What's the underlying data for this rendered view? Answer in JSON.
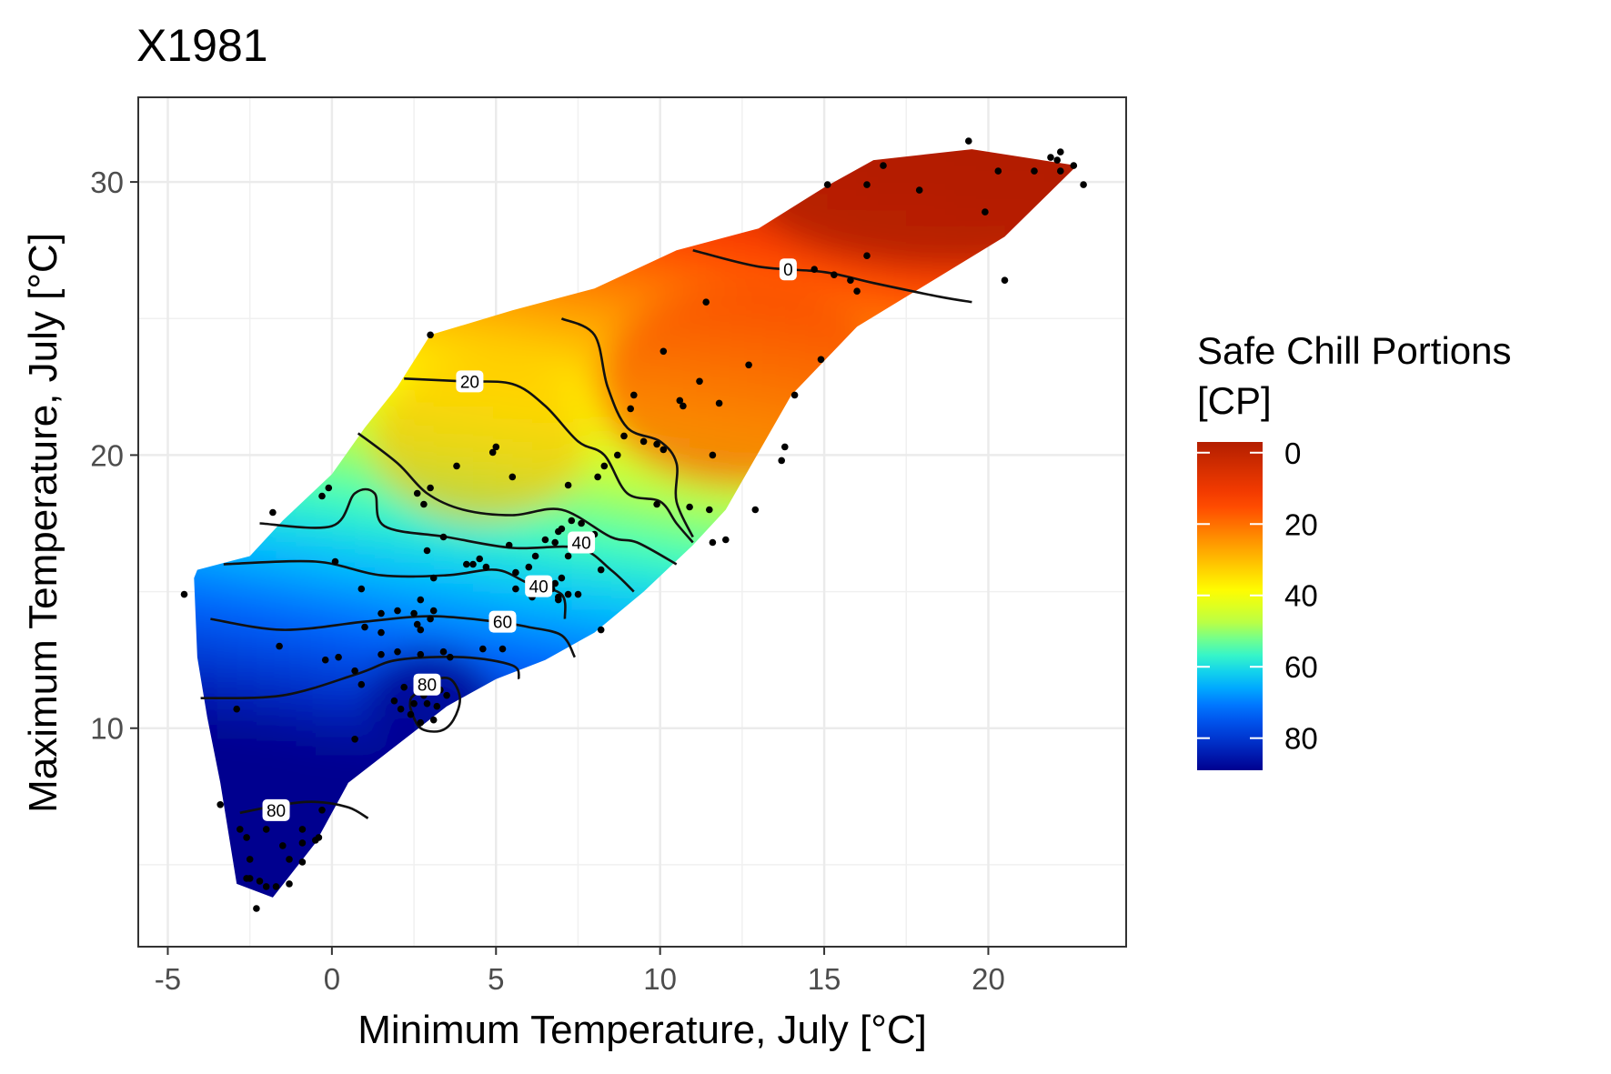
{
  "chart_data": {
    "type": "heatmap",
    "title": "X1981",
    "xlabel": "Minimum Temperature, July [°C]",
    "ylabel": "Maximum Temperature, July [°C]",
    "xlim": [
      -5.9,
      24.2
    ],
    "ylim": [
      2.0,
      33.1
    ],
    "x_ticks": [
      -5,
      0,
      5,
      10,
      15,
      20
    ],
    "y_ticks": [
      10,
      20,
      30
    ],
    "grid": true,
    "legend": {
      "title_lines": [
        "Safe Chill Portions",
        "[CP]"
      ],
      "position": "right",
      "range": [
        -3,
        89
      ],
      "breaks": [
        0,
        20,
        40,
        60,
        80
      ],
      "colors": [
        "#00008f",
        "#0033cc",
        "#0066ff",
        "#00bfff",
        "#40ffbf",
        "#bfff40",
        "#ffff00",
        "#ffbf00",
        "#ff8000",
        "#ff4000",
        "#d93000",
        "#b31e00"
      ]
    },
    "region_boundary": [
      [
        -4.1,
        15.8
      ],
      [
        -2.5,
        16.3
      ],
      [
        -1.5,
        17.6
      ],
      [
        0.0,
        19.3
      ],
      [
        1.0,
        21.0
      ],
      [
        2.0,
        22.5
      ],
      [
        3.0,
        24.4
      ],
      [
        5.5,
        25.3
      ],
      [
        8.0,
        26.1
      ],
      [
        10.5,
        27.5
      ],
      [
        13.0,
        28.3
      ],
      [
        15.0,
        29.8
      ],
      [
        16.5,
        30.8
      ],
      [
        18.0,
        31.0
      ],
      [
        19.5,
        31.2
      ],
      [
        22.7,
        30.6
      ],
      [
        20.5,
        28.0
      ],
      [
        16.0,
        24.7
      ],
      [
        14.0,
        22.2
      ],
      [
        12.0,
        18.0
      ],
      [
        11.0,
        16.7
      ],
      [
        9.5,
        15.0
      ],
      [
        8.0,
        13.5
      ],
      [
        6.5,
        12.5
      ],
      [
        5.0,
        11.8
      ],
      [
        3.5,
        10.8
      ],
      [
        0.5,
        8.0
      ],
      [
        -0.5,
        5.8
      ],
      [
        -1.8,
        3.8
      ],
      [
        -2.9,
        4.3
      ],
      [
        -3.4,
        8.0
      ],
      [
        -3.8,
        10.4
      ],
      [
        -4.1,
        12.6
      ],
      [
        -4.2,
        15.5
      ]
    ],
    "contours": [
      {
        "level": 0,
        "path": [
          [
            11.0,
            27.5
          ],
          [
            13.0,
            26.9
          ],
          [
            15.0,
            26.7
          ],
          [
            16.5,
            26.3
          ],
          [
            18.5,
            25.8
          ],
          [
            19.5,
            25.6
          ]
        ],
        "labels": [
          [
            13.9,
            26.8
          ]
        ]
      },
      {
        "level": 20,
        "path": [
          [
            2.2,
            22.8
          ],
          [
            4.0,
            22.7
          ],
          [
            5.5,
            22.6
          ],
          [
            6.5,
            21.8
          ],
          [
            7.5,
            20.5
          ],
          [
            8.3,
            20.0
          ],
          [
            9.0,
            18.6
          ],
          [
            10.0,
            18.3
          ],
          [
            10.5,
            17.5
          ],
          [
            11.0,
            16.8
          ]
        ],
        "labels": [
          [
            4.2,
            22.7
          ]
        ]
      },
      {
        "level": 20,
        "path": [
          [
            7.0,
            25.0
          ],
          [
            8.0,
            24.4
          ],
          [
            8.4,
            22.5
          ],
          [
            9.0,
            21.0
          ],
          [
            10.0,
            20.5
          ],
          [
            10.5,
            19.7
          ],
          [
            10.5,
            18.3
          ],
          [
            11.0,
            17.0
          ]
        ],
        "labels": []
      },
      {
        "level": 40,
        "path": [
          [
            0.8,
            20.8
          ],
          [
            2.0,
            19.7
          ],
          [
            2.9,
            18.6
          ],
          [
            4.0,
            18.0
          ],
          [
            5.5,
            17.8
          ],
          [
            7.0,
            18.0
          ],
          [
            8.5,
            17.0
          ],
          [
            9.3,
            16.8
          ],
          [
            10.5,
            16.0
          ]
        ],
        "labels": [
          [
            7.6,
            16.8
          ]
        ]
      },
      {
        "level": 40,
        "path": [
          [
            -2.2,
            17.5
          ],
          [
            0.0,
            17.4
          ],
          [
            0.7,
            18.6
          ],
          [
            1.3,
            18.6
          ],
          [
            1.6,
            17.4
          ],
          [
            3.5,
            17.0
          ],
          [
            5.5,
            16.6
          ],
          [
            7.5,
            16.6
          ],
          [
            8.5,
            15.8
          ],
          [
            9.2,
            15.0
          ]
        ],
        "labels": [
          [
            6.3,
            15.2
          ]
        ]
      },
      {
        "level": 60,
        "path": [
          [
            -3.3,
            16.0
          ],
          [
            -0.5,
            16.1
          ],
          [
            1.5,
            15.6
          ],
          [
            3.5,
            15.6
          ],
          [
            5.0,
            15.8
          ],
          [
            6.0,
            15.3
          ],
          [
            7.0,
            14.9
          ],
          [
            7.1,
            14.0
          ]
        ],
        "labels": []
      },
      {
        "level": 60,
        "path": [
          [
            -3.7,
            14.0
          ],
          [
            -1.5,
            13.6
          ],
          [
            1.0,
            13.9
          ],
          [
            3.0,
            14.1
          ],
          [
            5.0,
            13.9
          ],
          [
            6.0,
            13.7
          ],
          [
            7.0,
            13.4
          ],
          [
            7.4,
            12.6
          ]
        ],
        "labels": [
          [
            5.2,
            13.9
          ]
        ]
      },
      {
        "level": 80,
        "path": [
          [
            -4.0,
            11.1
          ],
          [
            -1.5,
            11.2
          ],
          [
            0.8,
            12.0
          ],
          [
            2.0,
            12.5
          ],
          [
            4.0,
            12.6
          ],
          [
            5.5,
            12.3
          ],
          [
            5.7,
            11.8
          ]
        ],
        "labels": []
      },
      {
        "level": 80,
        "path": [
          [
            2.4,
            11.1
          ],
          [
            3.0,
            11.7
          ],
          [
            3.6,
            11.8
          ],
          [
            3.9,
            11.1
          ],
          [
            3.7,
            10.3
          ],
          [
            3.3,
            9.9
          ],
          [
            2.7,
            10.0
          ],
          [
            2.4,
            10.7
          ],
          [
            2.4,
            11.1
          ]
        ],
        "labels": [
          [
            2.9,
            11.6
          ]
        ]
      },
      {
        "level": 80,
        "path": [
          [
            -2.8,
            6.9
          ],
          [
            -1.5,
            7.2
          ],
          [
            -0.5,
            7.3
          ],
          [
            0.5,
            7.1
          ],
          [
            1.1,
            6.7
          ]
        ],
        "labels": [
          [
            -1.7,
            7.0
          ]
        ]
      }
    ],
    "points": [
      [
        19.4,
        31.5
      ],
      [
        22.2,
        31.1
      ],
      [
        21.9,
        30.9
      ],
      [
        22.1,
        30.8
      ],
      [
        22.6,
        30.6
      ],
      [
        22.2,
        30.4
      ],
      [
        16.8,
        30.6
      ],
      [
        20.3,
        30.4
      ],
      [
        21.4,
        30.4
      ],
      [
        15.1,
        29.9
      ],
      [
        16.3,
        29.9
      ],
      [
        17.9,
        29.7
      ],
      [
        22.9,
        29.9
      ],
      [
        19.9,
        28.9
      ],
      [
        16.3,
        27.3
      ],
      [
        13.9,
        27.0
      ],
      [
        14.7,
        26.8
      ],
      [
        15.3,
        26.6
      ],
      [
        15.8,
        26.4
      ],
      [
        20.5,
        26.4
      ],
      [
        16.0,
        26.0
      ],
      [
        11.4,
        25.6
      ],
      [
        10.1,
        23.8
      ],
      [
        14.9,
        23.5
      ],
      [
        12.7,
        23.3
      ],
      [
        11.2,
        22.7
      ],
      [
        9.2,
        22.2
      ],
      [
        10.6,
        22.0
      ],
      [
        14.1,
        22.2
      ],
      [
        11.8,
        21.9
      ],
      [
        9.1,
        21.7
      ],
      [
        10.7,
        21.8
      ],
      [
        8.9,
        20.7
      ],
      [
        9.5,
        20.5
      ],
      [
        9.9,
        20.4
      ],
      [
        10.1,
        20.2
      ],
      [
        13.8,
        20.3
      ],
      [
        11.6,
        20.0
      ],
      [
        8.7,
        20.0
      ],
      [
        13.7,
        19.8
      ],
      [
        8.3,
        19.6
      ],
      [
        5.0,
        20.3
      ],
      [
        4.9,
        20.1
      ],
      [
        3.8,
        19.6
      ],
      [
        5.5,
        19.2
      ],
      [
        8.1,
        19.2
      ],
      [
        7.2,
        18.9
      ],
      [
        3.0,
        18.8
      ],
      [
        2.6,
        18.6
      ],
      [
        2.8,
        18.2
      ],
      [
        9.9,
        18.2
      ],
      [
        10.9,
        18.1
      ],
      [
        11.5,
        18.0
      ],
      [
        12.9,
        18.0
      ],
      [
        -0.1,
        18.8
      ],
      [
        -0.3,
        18.5
      ],
      [
        -1.8,
        17.9
      ],
      [
        7.3,
        17.6
      ],
      [
        7.6,
        17.5
      ],
      [
        7.0,
        17.3
      ],
      [
        6.8,
        16.8
      ],
      [
        8.0,
        17.1
      ],
      [
        6.9,
        17.2
      ],
      [
        3.4,
        17.0
      ],
      [
        5.4,
        16.7
      ],
      [
        6.5,
        16.9
      ],
      [
        11.6,
        16.8
      ],
      [
        12.0,
        16.9
      ],
      [
        2.9,
        16.5
      ],
      [
        4.5,
        16.2
      ],
      [
        7.2,
        16.3
      ],
      [
        6.2,
        16.3
      ],
      [
        0.1,
        16.1
      ],
      [
        4.1,
        16.0
      ],
      [
        4.3,
        16.0
      ],
      [
        6.0,
        15.9
      ],
      [
        4.7,
        15.9
      ],
      [
        5.6,
        15.7
      ],
      [
        8.2,
        15.8
      ],
      [
        3.1,
        15.5
      ],
      [
        7.0,
        15.5
      ],
      [
        6.8,
        15.3
      ],
      [
        6.7,
        15.1
      ],
      [
        7.2,
        14.9
      ],
      [
        6.9,
        14.7
      ],
      [
        5.6,
        15.1
      ],
      [
        0.9,
        15.1
      ],
      [
        6.1,
        14.8
      ],
      [
        7.5,
        14.9
      ],
      [
        6.9,
        14.8
      ],
      [
        2.7,
        14.7
      ],
      [
        -4.5,
        14.9
      ],
      [
        2.0,
        14.3
      ],
      [
        1.5,
        14.2
      ],
      [
        2.5,
        14.2
      ],
      [
        3.1,
        14.3
      ],
      [
        3.0,
        14.0
      ],
      [
        2.6,
        13.8
      ],
      [
        5.4,
        13.8
      ],
      [
        8.2,
        13.6
      ],
      [
        1.5,
        13.5
      ],
      [
        1.0,
        13.7
      ],
      [
        2.7,
        13.6
      ],
      [
        -1.6,
        13.0
      ],
      [
        1.5,
        12.7
      ],
      [
        2.0,
        12.8
      ],
      [
        2.7,
        12.7
      ],
      [
        3.4,
        12.8
      ],
      [
        3.6,
        12.6
      ],
      [
        4.6,
        12.9
      ],
      [
        5.2,
        12.9
      ],
      [
        0.2,
        12.6
      ],
      [
        -0.2,
        12.5
      ],
      [
        0.7,
        12.1
      ],
      [
        0.9,
        11.6
      ],
      [
        2.2,
        11.5
      ],
      [
        2.8,
        11.2
      ],
      [
        3.3,
        11.4
      ],
      [
        3.5,
        11.2
      ],
      [
        1.9,
        11.0
      ],
      [
        2.1,
        10.7
      ],
      [
        2.5,
        10.9
      ],
      [
        2.9,
        10.9
      ],
      [
        3.2,
        10.8
      ],
      [
        2.4,
        10.5
      ],
      [
        2.7,
        10.2
      ],
      [
        3.1,
        10.3
      ],
      [
        -2.9,
        10.7
      ],
      [
        0.7,
        9.6
      ],
      [
        -3.4,
        7.2
      ],
      [
        -0.3,
        7.0
      ],
      [
        -2.8,
        6.3
      ],
      [
        -2.0,
        6.3
      ],
      [
        -0.9,
        6.3
      ],
      [
        -0.4,
        6.0
      ],
      [
        -2.6,
        6.0
      ],
      [
        -1.5,
        5.7
      ],
      [
        -0.5,
        5.9
      ],
      [
        -0.9,
        5.8
      ],
      [
        -2.5,
        5.2
      ],
      [
        -1.3,
        5.2
      ],
      [
        -0.9,
        5.1
      ],
      [
        -2.5,
        4.5
      ],
      [
        -2.2,
        4.4
      ],
      [
        -2.0,
        4.2
      ],
      [
        -1.3,
        4.3
      ],
      [
        -1.7,
        4.2
      ],
      [
        -2.6,
        4.5
      ],
      [
        -2.3,
        3.4
      ],
      [
        3.0,
        24.4
      ]
    ]
  }
}
